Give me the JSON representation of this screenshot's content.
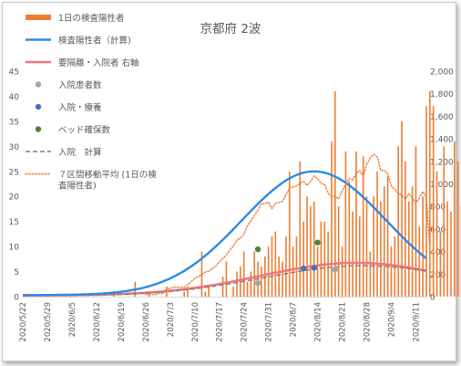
{
  "chart_data": {
    "type": "bar",
    "title": "京都府 2波",
    "left_axis": {
      "min": 0,
      "max": 45,
      "step": 5,
      "ticks": [
        "0",
        "5",
        "10",
        "15",
        "20",
        "25",
        "30",
        "35",
        "40",
        "45"
      ]
    },
    "right_axis": {
      "min": 0,
      "max": 2000,
      "step": 200,
      "ticks": [
        "0",
        "200",
        "400",
        "600",
        "800",
        "1,000",
        "1,200",
        "1,400",
        "1,600",
        "1,800",
        "2,000"
      ]
    },
    "x_axis": {
      "start_date": "2020-05-22",
      "end_date": "2020-09-14",
      "tick_labels": [
        "2020/5/22",
        "2020/5/29",
        "2020/6/5",
        "2020/6/12",
        "2020/6/19",
        "2020/6/26",
        "2020/7/3",
        "2020/7/10",
        "2020/7/17",
        "2020/7/24",
        "2020/7/31",
        "2020/8/7",
        "2020/8/14",
        "2020/8/21",
        "2020/8/28",
        "2020/9/4",
        "2020/9/11"
      ]
    },
    "legend": {
      "position": "top-left",
      "entries": [
        {
          "key": "daily",
          "label": "1日の検査陽性者",
          "color": "#ed7d31",
          "style": "bar"
        },
        {
          "key": "fit",
          "label": "検査陽性者（計算)",
          "color": "#2e8ae6",
          "style": "line"
        },
        {
          "key": "hosp",
          "label": "要隔離・入院者 右軸",
          "color": "#f4757a",
          "style": "line"
        },
        {
          "key": "inpatients",
          "label": "入院患者数",
          "color": "#a5a5a5",
          "style": "marker"
        },
        {
          "key": "recuperation",
          "label": "入院・療養",
          "color": "#4472c4",
          "style": "marker"
        },
        {
          "key": "beds",
          "label": "ベッド確保数",
          "color": "#548235",
          "style": "marker"
        },
        {
          "key": "hosp_calc",
          "label": "入院　計算",
          "color": "#7f7f7f",
          "style": "dash"
        },
        {
          "key": "ma7",
          "label": "７区間移動平均 (1日の検査陽性者)",
          "label_lines": [
            "７区間移動平均 (1日の検",
            "査陽性者)"
          ],
          "color": "#ed7d31",
          "style": "dot"
        }
      ]
    },
    "series": [
      {
        "name": "1日の検査陽性者",
        "axis": "left",
        "start_date": "2020-05-22",
        "values": [
          0,
          0,
          0,
          0,
          0,
          0,
          0,
          0,
          0,
          0,
          0,
          0,
          0,
          0,
          0,
          0,
          0,
          0,
          0,
          0,
          0,
          0,
          0,
          0,
          0,
          0,
          1,
          0,
          0,
          0,
          0,
          0,
          3,
          0,
          0,
          0,
          1,
          0,
          0,
          0,
          0,
          2,
          0,
          0,
          0,
          0,
          1,
          2,
          0,
          0,
          0,
          9,
          1,
          2,
          0,
          0,
          0,
          4,
          7,
          0,
          2,
          5,
          6,
          9,
          3,
          5,
          9,
          7,
          6,
          8,
          10,
          12,
          13,
          8,
          7,
          12,
          25,
          10,
          12,
          27,
          15,
          20,
          18,
          19,
          10,
          15,
          15,
          13,
          31,
          41,
          18,
          10,
          29,
          23,
          17,
          29,
          16,
          28,
          20,
          9,
          20,
          25,
          19,
          22,
          24,
          10,
          12,
          30,
          35,
          27,
          19,
          22,
          30,
          14,
          20,
          38,
          41,
          38,
          25,
          13,
          30,
          19,
          17,
          31,
          27,
          18,
          9
        ]
      },
      {
        "name": "７区間移動平均 (1日の検査陽性者)",
        "axis": "left",
        "start_date": "2020-06-26",
        "values": [
          0.4,
          0.4,
          0.4,
          0.4,
          0.7,
          0.6,
          1.6,
          1.6,
          1.9,
          1.9,
          1.9,
          1.9,
          2.4,
          3.0,
          3.6,
          4.0,
          4.4,
          4.9,
          5.1,
          5.6,
          6.1,
          7.0,
          7.6,
          8.3,
          9.3,
          10.1,
          11.2,
          11.7,
          12.4,
          14.1,
          15.1,
          16.2,
          17.3,
          18.5,
          18.6,
          18.9,
          17.6,
          18.6,
          18.8,
          19.0,
          20.3,
          21.7,
          21.9,
          22.1,
          22.7,
          23.0,
          22.2,
          23.0,
          24.1,
          23.6,
          22.6,
          22.4,
          20.7,
          20.0,
          20.1,
          19.5,
          21.1,
          22.4,
          23.6,
          23.3,
          24.6,
          25.2,
          24.0,
          26.4,
          27.7,
          28.4,
          27.9,
          25.2,
          25.2,
          24.5,
          22.1,
          21.4,
          20.6,
          20.3,
          19.4,
          20.6,
          19.7,
          18.7,
          19.7,
          21.0,
          19.9,
          9.0
        ]
      },
      {
        "name": "検査陽性者（計算)",
        "axis": "left",
        "model": "gaussian",
        "peak_date": "2020-08-13",
        "peak": 25,
        "baseline": 0.3,
        "sigma_days": 20.5,
        "end_date": "2020-09-14"
      },
      {
        "name": "要隔離・入院者 右軸",
        "axis": "right",
        "model": "gaussian",
        "peak_date": "2020-08-25",
        "peak": 300,
        "baseline": 10,
        "sigma_days": 27,
        "end_date": "2020-09-14"
      },
      {
        "name": "入院　計算",
        "axis": "right",
        "model": "gaussian",
        "peak_date": "2020-08-27",
        "peak": 275,
        "baseline": 8,
        "sigma_days": 28,
        "end_date": "2020-09-14"
      },
      {
        "name": "入院患者数",
        "axis": "right",
        "points": [
          {
            "date": "2020-07-28",
            "value": 120
          },
          {
            "date": "2020-08-19",
            "value": 240
          }
        ]
      },
      {
        "name": "入院・療養",
        "axis": "right",
        "points": [
          {
            "date": "2020-08-10",
            "value": 250
          },
          {
            "date": "2020-08-13",
            "value": 255
          }
        ]
      },
      {
        "name": "ベッド確保数",
        "axis": "right",
        "points": [
          {
            "date": "2020-07-28",
            "value": 420
          },
          {
            "date": "2020-08-14",
            "value": 480
          }
        ]
      }
    ],
    "grid": false
  }
}
